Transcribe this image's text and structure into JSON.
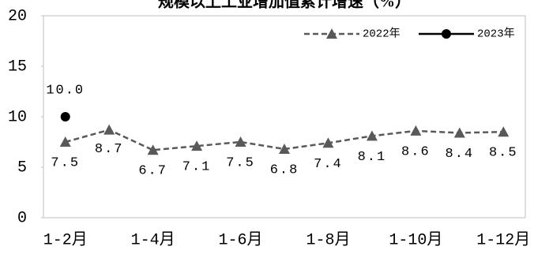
{
  "chart_data": {
    "type": "line",
    "title": "规模以上工业增加值累计增速（%）",
    "categories": [
      "1-2月",
      null,
      "1-4月",
      null,
      "1-6月",
      null,
      "1-8月",
      null,
      "1-10月",
      null,
      "1-12月"
    ],
    "series": [
      {
        "name": "2022年",
        "color": "#595959",
        "dashed": true,
        "marker": "triangle",
        "values": [
          7.5,
          8.7,
          6.7,
          7.1,
          7.5,
          6.8,
          7.4,
          8.1,
          8.6,
          8.4,
          8.5
        ]
      },
      {
        "name": "2023年",
        "color": "#000000",
        "dashed": false,
        "marker": "circle",
        "values": [
          10.0,
          null,
          null,
          null,
          null,
          null,
          null,
          null,
          null,
          null,
          null
        ],
        "value_labels": [
          "10.0",
          null,
          null,
          null,
          null,
          null,
          null,
          null,
          null,
          null,
          null
        ]
      }
    ],
    "ylim": [
      0,
      20
    ],
    "yticks": [
      0,
      5,
      10,
      15,
      20
    ],
    "grid": false,
    "legend": "top-right"
  }
}
